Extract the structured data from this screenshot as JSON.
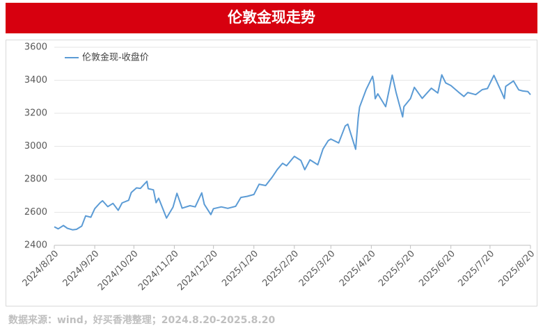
{
  "chart_data": {
    "type": "line",
    "title": "伦敦金现走势",
    "source": "数据来源：wind，好买香港整理；2024.8.20-2025.8.20",
    "x": [
      "2024/8/20",
      "2024/8/23",
      "2024/8/27",
      "2024/8/30",
      "2024/9/3",
      "2024/9/6",
      "2024/9/10",
      "2024/9/13",
      "2024/9/17",
      "2024/9/20",
      "2024/9/24",
      "2024/9/26",
      "2024/9/30",
      "2024/10/4",
      "2024/10/8",
      "2024/10/11",
      "2024/10/16",
      "2024/10/18",
      "2024/10/22",
      "2024/10/25",
      "2024/10/30",
      "2024/10/31",
      "2024/11/4",
      "2024/11/6",
      "2024/11/8",
      "2024/11/14",
      "2024/11/19",
      "2024/11/22",
      "2024/11/26",
      "2024/12/2",
      "2024/12/6",
      "2024/12/11",
      "2024/12/13",
      "2024/12/18",
      "2024/12/20",
      "2024/12/26",
      "2024/12/31",
      "2025/1/6",
      "2025/1/10",
      "2025/1/15",
      "2025/1/20",
      "2025/1/24",
      "2025/1/29",
      "2025/2/3",
      "2025/2/7",
      "2025/2/11",
      "2025/2/14",
      "2025/2/20",
      "2025/2/25",
      "2025/2/28",
      "2025/3/4",
      "2025/3/10",
      "2025/3/14",
      "2025/3/18",
      "2025/3/20",
      "2025/3/26",
      "2025/3/31",
      "2025/4/2",
      "2025/4/8",
      "2025/4/10",
      "2025/4/11",
      "2025/4/16",
      "2025/4/21",
      "2025/4/22",
      "2025/4/23",
      "2025/4/25",
      "2025/5/1",
      "2025/5/6",
      "2025/5/9",
      "2025/5/14",
      "2025/5/15",
      "2025/5/20",
      "2025/5/23",
      "2025/5/29",
      "2025/6/5",
      "2025/6/10",
      "2025/6/13",
      "2025/6/16",
      "2025/6/20",
      "2025/6/26",
      "2025/6/30",
      "2025/7/3",
      "2025/7/9",
      "2025/7/14",
      "2025/7/18",
      "2025/7/23",
      "2025/7/29",
      "2025/7/31",
      "2025/8/1",
      "2025/8/7",
      "2025/8/11",
      "2025/8/14",
      "2025/8/18",
      "2025/8/20"
    ],
    "series": [
      {
        "name": "伦敦金现-收盘价",
        "color": "#5b9bd5",
        "values": [
          2512,
          2500,
          2520,
          2503,
          2494,
          2497,
          2516,
          2578,
          2570,
          2622,
          2657,
          2670,
          2634,
          2654,
          2612,
          2657,
          2673,
          2720,
          2748,
          2745,
          2788,
          2743,
          2736,
          2658,
          2685,
          2565,
          2631,
          2715,
          2625,
          2640,
          2633,
          2718,
          2648,
          2586,
          2622,
          2633,
          2624,
          2636,
          2690,
          2697,
          2708,
          2770,
          2762,
          2813,
          2860,
          2897,
          2882,
          2939,
          2914,
          2858,
          2918,
          2888,
          2984,
          3034,
          3044,
          3020,
          3123,
          3134,
          2982,
          3174,
          3237,
          3343,
          3424,
          3381,
          3288,
          3318,
          3240,
          3431,
          3325,
          3178,
          3240,
          3289,
          3357,
          3290,
          3352,
          3323,
          3433,
          3384,
          3368,
          3327,
          3302,
          3326,
          3313,
          3343,
          3350,
          3430,
          3325,
          3289,
          3363,
          3396,
          3342,
          3335,
          3332,
          3313
        ]
      }
    ],
    "xlim": [
      "2024/8/20",
      "2025/8/20"
    ],
    "xticks": [
      "2024/8/20",
      "2024/9/20",
      "2024/10/20",
      "2024/11/20",
      "2024/12/20",
      "2025/1/20",
      "2025/2/20",
      "2025/3/20",
      "2025/4/20",
      "2025/5/20",
      "2025/6/20",
      "2025/7/20",
      "2025/8/20"
    ],
    "ylim": [
      2400,
      3600
    ],
    "yticks": [
      2400,
      2600,
      2800,
      3000,
      3200,
      3400,
      3600
    ],
    "grid": true,
    "legend": "top-left"
  }
}
